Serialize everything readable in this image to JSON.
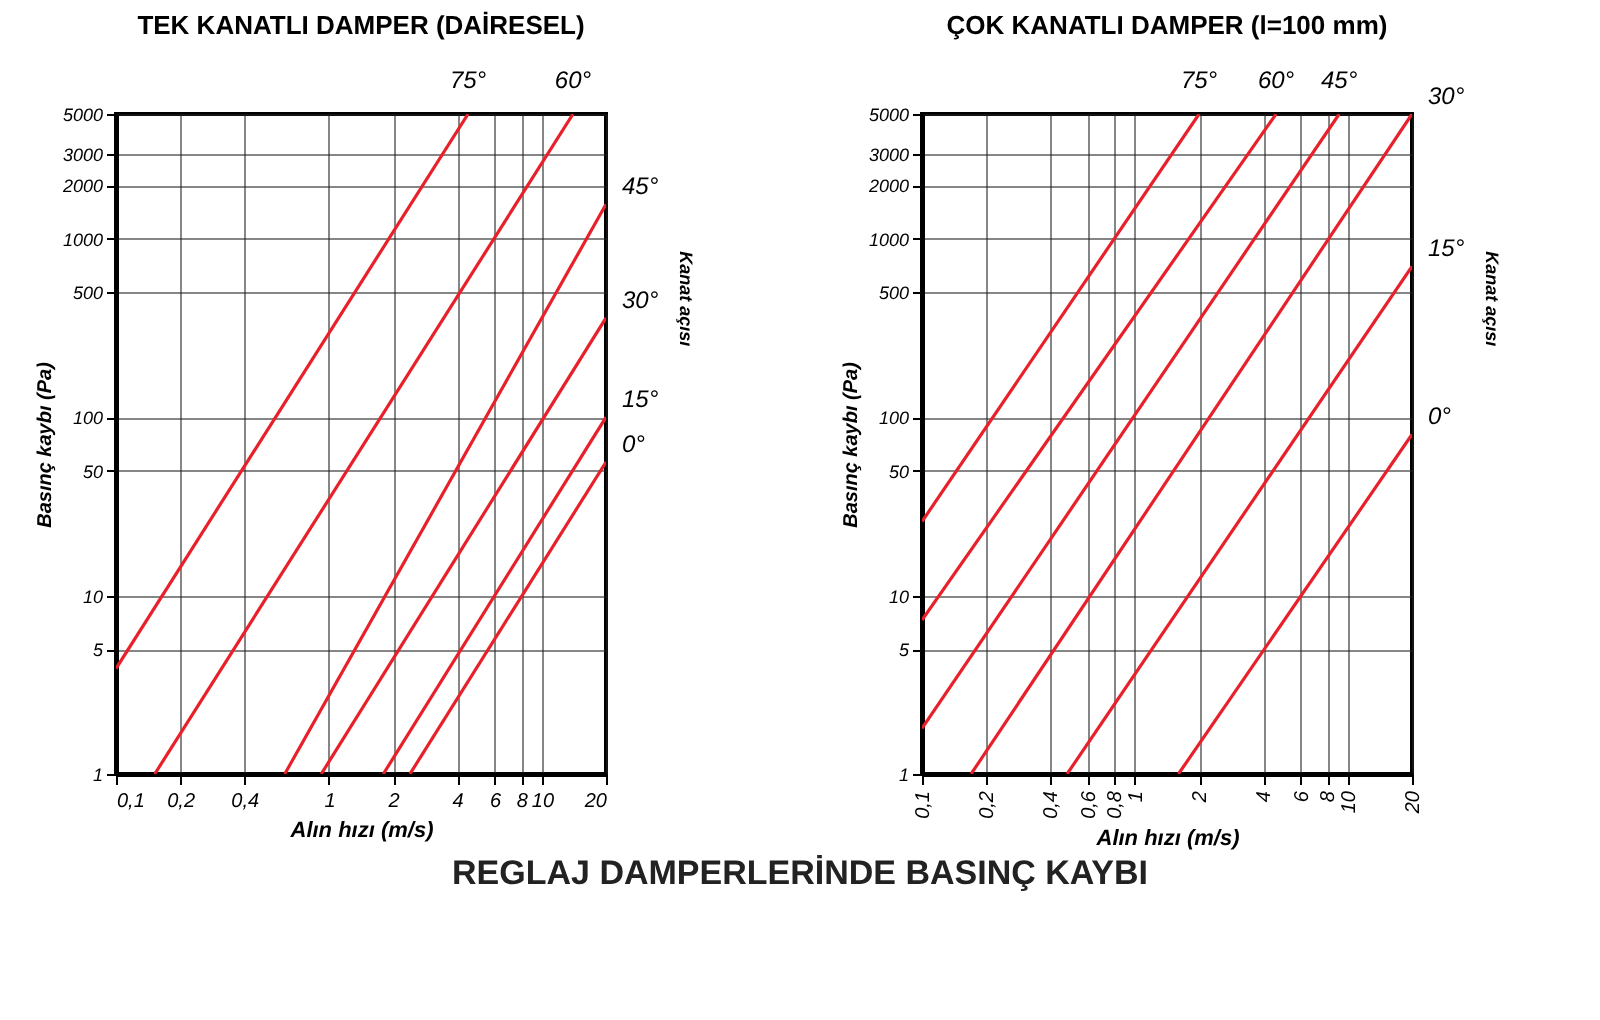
{
  "chart_data": [
    {
      "type": "line",
      "title": "TEK KANATLI DAMPER (DAİRESEL)",
      "xlabel": "Alın hızı (m/s)",
      "ylabel": "Basınç kaybı (Pa)",
      "log": "xy",
      "grid": true,
      "xlim": [
        0.1,
        20
      ],
      "ylim": [
        1,
        5000
      ],
      "xticks": [
        {
          "value": 0.1,
          "label": "0,1"
        },
        {
          "value": 0.2,
          "label": "0,2"
        },
        {
          "value": 0.4,
          "label": "0,4"
        },
        1,
        2,
        4,
        6,
        8,
        10,
        20
      ],
      "yticks": [
        1,
        5,
        10,
        50,
        100,
        500,
        1000,
        2000,
        3000,
        5000
      ],
      "series": [
        {
          "name": "75°",
          "color": "#e8202a",
          "x": [
            0.1,
            4.5
          ],
          "values": [
            3.9,
            5000
          ]
        },
        {
          "name": "60°",
          "color": "#e8202a",
          "x": [
            0.152,
            14
          ],
          "values": [
            1,
            5000
          ]
        },
        {
          "name": "45°",
          "color": "#e8202a",
          "x": [
            0.62,
            20
          ],
          "values": [
            1,
            1560
          ]
        },
        {
          "name": "30°",
          "color": "#e8202a",
          "x": [
            0.92,
            20
          ],
          "values": [
            1,
            360
          ]
        },
        {
          "name": "15°",
          "color": "#e8202a",
          "x": [
            1.8,
            20
          ],
          "values": [
            1,
            100
          ]
        },
        {
          "name": "0°",
          "color": "#e8202a",
          "x": [
            2.4,
            20
          ],
          "values": [
            1,
            56
          ]
        }
      ],
      "annotations": [
        "Kanat açısı",
        "REGLAJ DAMPERLERİNDE BASINÇ KAYBI"
      ]
    },
    {
      "type": "line",
      "title": "ÇOK KANATLI DAMPER (l=100 mm)",
      "xlabel": "Alın hızı (m/s)",
      "ylabel": "Basınç kaybı (Pa)",
      "log": "xy",
      "grid": true,
      "xlim": [
        0.1,
        20
      ],
      "ylim": [
        1,
        5000
      ],
      "xticks": [
        {
          "value": 0.1,
          "label": "0,1"
        },
        {
          "value": 0.2,
          "label": "0,2"
        },
        {
          "value": 0.4,
          "label": "0,4"
        },
        {
          "value": 0.6,
          "label": "0,6"
        },
        {
          "value": 0.8,
          "label": "0,8"
        },
        1,
        2,
        4,
        6,
        8,
        10,
        20
      ],
      "yticks": [
        1,
        5,
        10,
        50,
        100,
        500,
        1000,
        2000,
        3000,
        5000
      ],
      "series": [
        {
          "name": "75°",
          "color": "#e8202a",
          "x": [
            0.1,
            2.0
          ],
          "values": [
            26,
            5000
          ]
        },
        {
          "name": "60°",
          "color": "#e8202a",
          "x": [
            0.1,
            4.6
          ],
          "values": [
            7.3,
            5000
          ]
        },
        {
          "name": "45°",
          "color": "#e8202a",
          "x": [
            0.1,
            9.1
          ],
          "values": [
            1.8,
            5000
          ]
        },
        {
          "name": "30°",
          "color": "#e8202a",
          "x": [
            0.17,
            20
          ],
          "values": [
            1,
            5000
          ]
        },
        {
          "name": "15°",
          "color": "#e8202a",
          "x": [
            0.48,
            20
          ],
          "values": [
            1,
            700
          ]
        },
        {
          "name": "0°",
          "color": "#e8202a",
          "x": [
            1.6,
            20
          ],
          "values": [
            1,
            80
          ]
        }
      ],
      "annotations": [
        "Kanat açısı"
      ]
    }
  ]
}
